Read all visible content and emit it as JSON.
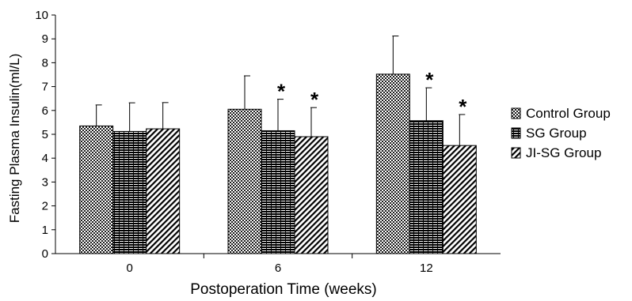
{
  "chart_data": {
    "type": "bar",
    "title": "",
    "xlabel": "Postoperation Time (weeks)",
    "ylabel": "Fasting Plasma Insulin(ml/L)",
    "ylim": [
      0,
      10
    ],
    "yticks": [
      "0",
      "1",
      "2",
      "3",
      "4",
      "5",
      "6",
      "7",
      "8",
      "9",
      "10"
    ],
    "categories": [
      "0",
      "6",
      "12"
    ],
    "legend_position": "right",
    "grid": false,
    "series": [
      {
        "name": "Control Group",
        "pattern": "checker",
        "values": [
          5.35,
          6.05,
          7.52
        ],
        "errors": [
          0.88,
          1.4,
          1.6
        ],
        "significant": [
          false,
          false,
          false
        ]
      },
      {
        "name": "SG Group",
        "pattern": "horizontal-hatch",
        "values": [
          5.12,
          5.15,
          5.57
        ],
        "errors": [
          1.2,
          1.32,
          1.38
        ],
        "significant": [
          false,
          true,
          true
        ]
      },
      {
        "name": "JI-SG Group",
        "pattern": "diagonal-hatch",
        "values": [
          5.23,
          4.9,
          4.53
        ],
        "errors": [
          1.1,
          1.22,
          1.3
        ],
        "significant": [
          false,
          true,
          true
        ]
      }
    ],
    "significance_marker": "*"
  }
}
